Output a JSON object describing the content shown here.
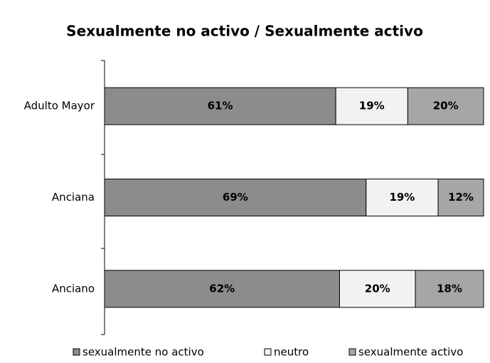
{
  "chart_data": {
    "type": "stacked_barh",
    "title": "Sexualmente no activo / Sexualmente activo",
    "categories": [
      "Adulto Mayor",
      "Anciana",
      "Anciano"
    ],
    "series": [
      {
        "name": "sexualmente no activo",
        "color": "#8c8c8c",
        "values": [
          61,
          69,
          62
        ],
        "value_labels": [
          "61%",
          "69%",
          "62%"
        ]
      },
      {
        "name": "neutro",
        "color": "#f2f2f2",
        "values": [
          19,
          19,
          20
        ],
        "value_labels": [
          "19%",
          "19%",
          "20%"
        ]
      },
      {
        "name": "sexualmente activo",
        "color": "#a6a6a6",
        "values": [
          20,
          12,
          18
        ],
        "value_labels": [
          "20%",
          "12%",
          "18%"
        ]
      }
    ],
    "xlim": [
      0,
      100
    ],
    "legend": "bottom"
  }
}
